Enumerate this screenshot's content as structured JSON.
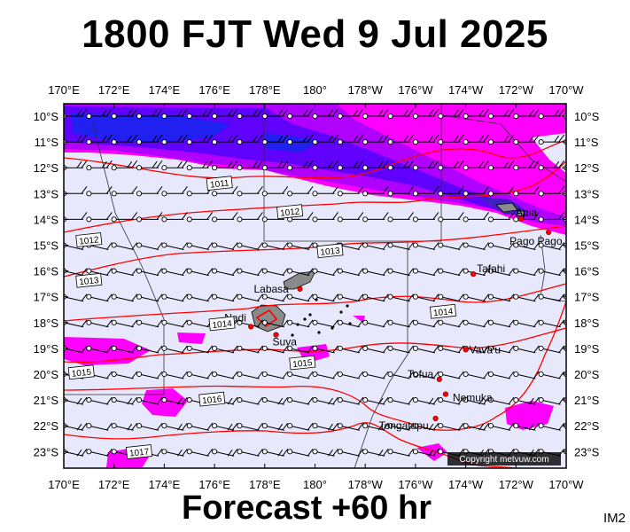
{
  "title": "1800 FJT Wed 9 Jul 2025",
  "footer": "Forecast +60 hr",
  "image_code": "IM2",
  "copyright": "Copyright metvuw.com",
  "map": {
    "longitude_labels": [
      "170°E",
      "172°E",
      "174°E",
      "176°E",
      "178°E",
      "180°",
      "178°W",
      "176°W",
      "174°W",
      "172°W",
      "170°W"
    ],
    "latitude_labels": [
      "10°S",
      "11°S",
      "12°S",
      "13°S",
      "14°S",
      "15°S",
      "16°S",
      "17°S",
      "18°S",
      "19°S",
      "20°S",
      "21°S",
      "22°S",
      "23°S"
    ],
    "places": [
      {
        "name": "Apia",
        "lon": -171.8,
        "lat": -13.8
      },
      {
        "name": "Pago Pago",
        "lon": -170.7,
        "lat": -14.3
      },
      {
        "name": "Tafahi",
        "lon": -173.7,
        "lat": -15.85
      },
      {
        "name": "Labasa",
        "lon": 179.4,
        "lat": -16.4
      },
      {
        "name": "Nadi",
        "lon": 177.45,
        "lat": -17.8
      },
      {
        "name": "Suva",
        "lon": 178.45,
        "lat": -18.1
      },
      {
        "name": "Vava'u",
        "lon": -174.0,
        "lat": -18.65
      },
      {
        "name": "Tofua",
        "lon": -175.05,
        "lat": -19.75
      },
      {
        "name": "Nomuka",
        "lon": -174.8,
        "lat": -20.3
      },
      {
        "name": "Tongatapu",
        "lon": -175.2,
        "lat": -21.2
      }
    ],
    "isobars": [
      {
        "label": "1011",
        "label_lon": 176.2,
        "label_lat": -12.5
      },
      {
        "label": "1012",
        "label_lon": 171.0,
        "label_lat": -14.6
      },
      {
        "label": "1012",
        "label_lon": 179.0,
        "label_lat": -13.55
      },
      {
        "label": "1013",
        "label_lon": 171.0,
        "label_lat": -16.1
      },
      {
        "label": "1013",
        "label_lon": 180.6,
        "label_lat": -15.0
      },
      {
        "label": "1014",
        "label_lon": 176.3,
        "label_lat": -17.7
      },
      {
        "label": "1014",
        "label_lon": -174.9,
        "label_lat": -17.25
      },
      {
        "label": "1015",
        "label_lon": 170.7,
        "label_lat": -19.5
      },
      {
        "label": "1015",
        "label_lon": 179.5,
        "label_lat": -19.15
      },
      {
        "label": "1016",
        "label_lon": 175.9,
        "label_lat": -20.5
      },
      {
        "label": "1017",
        "label_lon": 173.0,
        "label_lat": -22.45
      }
    ],
    "colors": {
      "background": "#e8e8fc",
      "rain_light": "#ff00ff",
      "rain_medium": "#b000ff",
      "rain_heavy": "#6000ff",
      "rain_very_heavy": "#2020f0",
      "isobar": "#ff0000",
      "land": "#8a8a8a"
    }
  }
}
